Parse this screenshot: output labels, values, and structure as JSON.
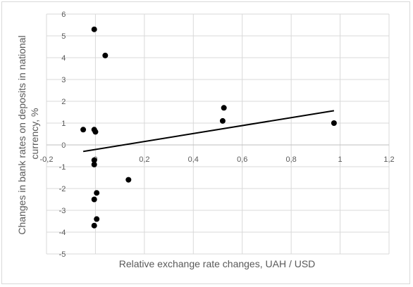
{
  "chart_data": {
    "type": "scatter",
    "title": "",
    "xlabel": "Relative exchange rate changes, UAH / USD",
    "ylabel": "Changes in bank rates on deposits in national currency, %",
    "xlim": [
      -0.2,
      1.2
    ],
    "ylim": [
      -5,
      6
    ],
    "x_ticks": [
      -0.2,
      0,
      0.2,
      0.4,
      0.6,
      0.8,
      1,
      1.2
    ],
    "x_tick_labels": [
      "-0,2",
      "0",
      "0,2",
      "0,4",
      "0,6",
      "0,8",
      "1",
      "1,2"
    ],
    "y_ticks": [
      -5,
      -4,
      -3,
      -2,
      -1,
      0,
      1,
      2,
      3,
      4,
      5,
      6
    ],
    "y_tick_labels": [
      "-5",
      "-4",
      "-3",
      "-2",
      "-1",
      "0",
      "1",
      "2",
      "3",
      "4",
      "5",
      "6"
    ],
    "grid": true,
    "legend": false,
    "series": [
      {
        "points": [
          {
            "x": -0.05,
            "y": 0.7
          },
          {
            "x": -0.005,
            "y": 5.3
          },
          {
            "x": 0.04,
            "y": 4.1
          },
          {
            "x": -0.005,
            "y": 0.7
          },
          {
            "x": 0.0,
            "y": 0.6
          },
          {
            "x": -0.005,
            "y": -0.7
          },
          {
            "x": -0.005,
            "y": -0.9
          },
          {
            "x": 0.005,
            "y": -2.2
          },
          {
            "x": -0.005,
            "y": -2.5
          },
          {
            "x": 0.005,
            "y": -3.4
          },
          {
            "x": -0.005,
            "y": -3.7
          },
          {
            "x": 0.135,
            "y": -1.6
          },
          {
            "x": 0.525,
            "y": 1.7
          },
          {
            "x": 0.52,
            "y": 1.1
          },
          {
            "x": 0.975,
            "y": 1.0
          }
        ],
        "color": "#000000"
      }
    ],
    "trendline": {
      "type": "linear",
      "x": [
        -0.05,
        0.975
      ],
      "y": [
        -0.3,
        1.57
      ],
      "color": "#000000"
    }
  }
}
